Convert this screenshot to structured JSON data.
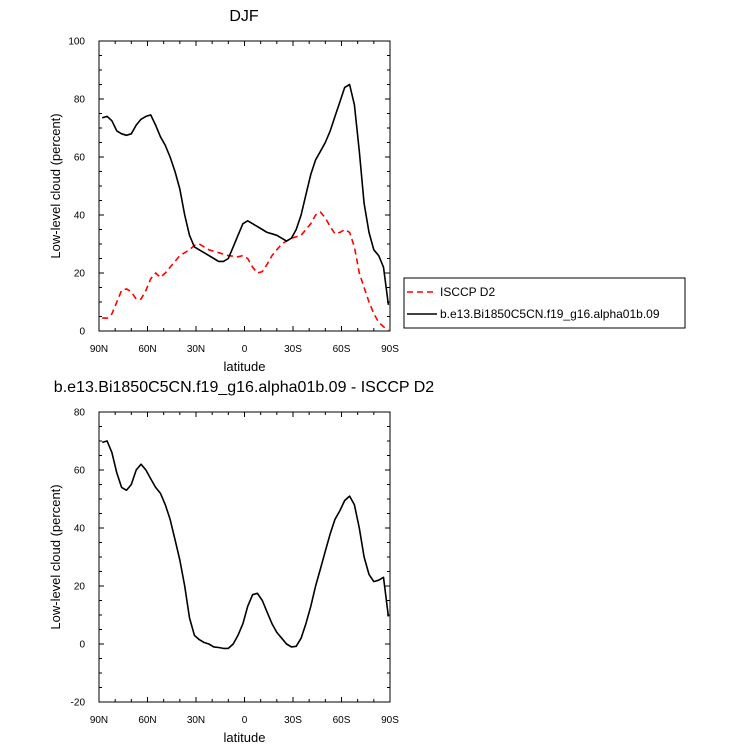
{
  "chart_data": [
    {
      "type": "line",
      "title": "DJF",
      "xlabel": "latitude",
      "ylabel": "Low-level cloud (percent)",
      "xlim": [
        90,
        -90
      ],
      "ylim": [
        0,
        100
      ],
      "yticks": [
        0,
        20,
        40,
        60,
        80,
        100
      ],
      "xticks": [
        90,
        60,
        30,
        0,
        -30,
        -60,
        -90
      ],
      "xtick_labels": [
        "90N",
        "60N",
        "30N",
        "0",
        "30S",
        "60S",
        "90S"
      ],
      "legend_position": "right",
      "series": [
        {
          "name": "ISCCP D2",
          "color": "#ff0000",
          "dash": "dashed",
          "x": [
            88,
            85,
            82,
            79,
            76,
            73,
            70,
            67,
            64,
            61,
            58,
            55,
            52,
            49,
            46,
            43,
            40,
            37,
            34,
            31,
            28,
            25,
            22,
            19,
            16,
            13,
            10,
            7,
            4,
            1,
            -2,
            -5,
            -8,
            -11,
            -14,
            -17,
            -20,
            -23,
            -26,
            -29,
            -32,
            -35,
            -38,
            -41,
            -44,
            -47,
            -50,
            -53,
            -56,
            -59,
            -62,
            -65,
            -68,
            -71,
            -74,
            -77,
            -80,
            -83,
            -86,
            -89
          ],
          "y": [
            4.5,
            4.4,
            5.9,
            10,
            14,
            14.5,
            13.5,
            11,
            11,
            14,
            18,
            20,
            18.5,
            20,
            22,
            24,
            26,
            27,
            28,
            29.5,
            30,
            29,
            28,
            27.5,
            27,
            26.5,
            26,
            25.8,
            25.6,
            26,
            25,
            22,
            20,
            20.5,
            23,
            26,
            28,
            30,
            31,
            32,
            32.5,
            33,
            35,
            37,
            40,
            41,
            39,
            36,
            33.5,
            34,
            35,
            34,
            29,
            20,
            15,
            10,
            6,
            3,
            1.5,
            0.2
          ]
        },
        {
          "name": "b.e13.Bi1850C5CN.f19_g16.alpha01b.09",
          "color": "#000000",
          "dash": "solid",
          "x": [
            88,
            85,
            82,
            79,
            76,
            73,
            70,
            67,
            64,
            61,
            58,
            55,
            52,
            49,
            46,
            43,
            40,
            37,
            34,
            31,
            28,
            25,
            22,
            19,
            16,
            13,
            10,
            7,
            4,
            1,
            -2,
            -5,
            -8,
            -11,
            -14,
            -17,
            -20,
            -23,
            -26,
            -29,
            -32,
            -35,
            -38,
            -41,
            -44,
            -47,
            -50,
            -53,
            -56,
            -59,
            -62,
            -65,
            -68,
            -71,
            -74,
            -77,
            -80,
            -83,
            -86,
            -89
          ],
          "y": [
            73.5,
            74,
            72.5,
            69,
            68,
            67.5,
            68,
            71,
            73,
            74,
            74.5,
            71,
            67,
            64,
            60,
            55,
            49,
            40,
            33,
            29,
            28,
            27,
            26,
            25,
            24,
            24,
            25,
            29,
            33,
            37,
            38,
            37,
            36,
            35,
            34,
            33.5,
            33,
            32,
            31,
            32,
            35,
            40,
            47,
            54,
            59,
            62,
            65,
            69,
            74,
            79,
            84,
            85,
            78,
            62,
            44,
            34,
            28,
            26,
            22,
            9
          ]
        }
      ]
    },
    {
      "type": "line",
      "title": "b.e13.Bi1850C5CN.f19_g16.alpha01b.09 - ISCCP D2",
      "xlabel": "latitude",
      "ylabel": "Low-level cloud (percent)",
      "xlim": [
        90,
        -90
      ],
      "ylim": [
        -20,
        80
      ],
      "yticks": [
        -20,
        0,
        20,
        40,
        60,
        80
      ],
      "xticks": [
        90,
        60,
        30,
        0,
        -30,
        -60,
        -90
      ],
      "xtick_labels": [
        "90N",
        "60N",
        "30N",
        "0",
        "30S",
        "60S",
        "90S"
      ],
      "series": [
        {
          "color": "#000000",
          "dash": "solid",
          "x": [
            88,
            85,
            82,
            79,
            76,
            73,
            70,
            67,
            64,
            61,
            58,
            55,
            52,
            49,
            46,
            43,
            40,
            37,
            34,
            31,
            28,
            25,
            22,
            19,
            16,
            13,
            10,
            7,
            4,
            1,
            -2,
            -5,
            -8,
            -11,
            -14,
            -17,
            -20,
            -23,
            -26,
            -29,
            -32,
            -35,
            -38,
            -41,
            -44,
            -47,
            -50,
            -53,
            -56,
            -59,
            -62,
            -65,
            -68,
            -71,
            -74,
            -77,
            -80,
            -83,
            -86,
            -89
          ],
          "y": [
            69.5,
            70,
            66,
            59,
            54,
            53,
            55,
            60,
            62,
            60,
            57,
            54,
            52,
            48,
            43,
            36,
            29,
            20,
            9,
            3,
            1.5,
            0.5,
            0,
            -1,
            -1.2,
            -1.5,
            -1.5,
            0,
            3,
            7,
            13,
            17,
            17.5,
            15,
            11,
            7,
            4,
            2,
            0,
            -1,
            -0.8,
            2,
            7,
            13,
            20,
            26,
            32,
            38,
            43,
            46,
            49.5,
            51,
            48,
            40,
            30,
            24,
            21.5,
            22,
            23,
            9.5
          ]
        }
      ]
    }
  ]
}
